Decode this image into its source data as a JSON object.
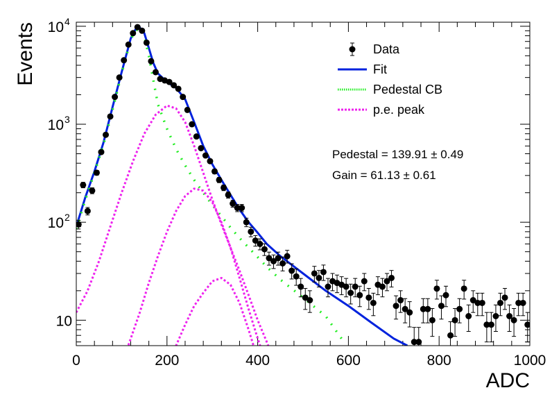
{
  "chart_data": {
    "type": "scatter",
    "title": "",
    "xlabel": "ADC",
    "ylabel": "Events",
    "xlim": [
      0,
      1000
    ],
    "ylim": [
      5.5,
      11000
    ],
    "yscale": "log",
    "grid": false,
    "x_ticks": [
      0,
      200,
      400,
      600,
      800,
      1000
    ],
    "x_tick_labels": [
      "0",
      "200",
      "400",
      "600",
      "800",
      "1000"
    ],
    "y_ticks": [
      10,
      100,
      1000,
      10000
    ],
    "y_tick_labels": [
      {
        "base": "10",
        "exp": ""
      },
      {
        "base": "10",
        "exp": "2"
      },
      {
        "base": "10",
        "exp": "3"
      },
      {
        "base": "10",
        "exp": "4"
      }
    ],
    "legend": {
      "placement": "top-right",
      "entries": [
        {
          "label": "Data",
          "style": "marker",
          "color": "#000000"
        },
        {
          "label": "Fit",
          "style": "solid",
          "color": "#0022dd"
        },
        {
          "label": "Pedestal CB",
          "style": "dotted",
          "color": "#22ee22"
        },
        {
          "label": "p.e. peak",
          "style": "dashed",
          "color": "#ee22ee"
        }
      ]
    },
    "annotations": [
      "Pedestal = 139.91 ± 0.49",
      "Gain = 61.13 ± 0.61"
    ],
    "series": [
      {
        "name": "Data",
        "kind": "points_with_errors",
        "color": "#000000",
        "points": [
          [
            5,
            95
          ],
          [
            15,
            240
          ],
          [
            25,
            130
          ],
          [
            35,
            210
          ],
          [
            45,
            320
          ],
          [
            55,
            520
          ],
          [
            65,
            780
          ],
          [
            75,
            1200
          ],
          [
            85,
            1900
          ],
          [
            95,
            3000
          ],
          [
            105,
            4500
          ],
          [
            115,
            6500
          ],
          [
            125,
            8500
          ],
          [
            135,
            9800
          ],
          [
            145,
            9000
          ],
          [
            155,
            6800
          ],
          [
            165,
            4400
          ],
          [
            175,
            3400
          ],
          [
            185,
            2900
          ],
          [
            195,
            2800
          ],
          [
            205,
            2700
          ],
          [
            215,
            2500
          ],
          [
            225,
            2300
          ],
          [
            235,
            1900
          ],
          [
            245,
            1400
          ],
          [
            255,
            1000
          ],
          [
            265,
            750
          ],
          [
            275,
            570
          ],
          [
            285,
            480
          ],
          [
            295,
            420
          ],
          [
            305,
            330
          ],
          [
            315,
            270
          ],
          [
            325,
            225
          ],
          [
            335,
            190
          ],
          [
            345,
            155
          ],
          [
            355,
            140
          ],
          [
            365,
            140
          ],
          [
            375,
            100
          ],
          [
            385,
            80
          ],
          [
            395,
            65
          ],
          [
            405,
            60
          ],
          [
            415,
            53
          ],
          [
            425,
            43
          ],
          [
            435,
            40
          ],
          [
            445,
            43
          ],
          [
            455,
            38
          ],
          [
            465,
            45
          ],
          [
            475,
            32
          ],
          [
            485,
            28
          ],
          [
            495,
            22
          ],
          [
            505,
            17
          ],
          [
            515,
            16
          ],
          [
            525,
            30
          ],
          [
            535,
            27
          ],
          [
            545,
            31
          ],
          [
            555,
            22
          ],
          [
            565,
            25
          ],
          [
            575,
            24
          ],
          [
            585,
            23
          ],
          [
            595,
            22
          ],
          [
            605,
            19
          ],
          [
            615,
            22
          ],
          [
            625,
            18
          ],
          [
            635,
            25
          ],
          [
            645,
            17
          ],
          [
            655,
            15
          ],
          [
            665,
            23
          ],
          [
            675,
            22
          ],
          [
            685,
            25
          ],
          [
            695,
            27
          ],
          [
            705,
            14
          ],
          [
            715,
            16
          ],
          [
            725,
            13
          ],
          [
            735,
            12
          ],
          [
            745,
            6
          ],
          [
            755,
            6
          ],
          [
            765,
            13
          ],
          [
            775,
            13
          ],
          [
            785,
            10
          ],
          [
            795,
            21
          ],
          [
            805,
            14
          ],
          [
            815,
            18
          ],
          [
            825,
            7
          ],
          [
            835,
            10
          ],
          [
            845,
            13
          ],
          [
            855,
            21
          ],
          [
            865,
            11
          ],
          [
            875,
            16
          ],
          [
            885,
            15
          ],
          [
            895,
            15
          ],
          [
            905,
            9
          ],
          [
            915,
            9
          ],
          [
            925,
            11
          ],
          [
            935,
            15
          ],
          [
            945,
            17
          ],
          [
            955,
            11
          ],
          [
            965,
            10
          ],
          [
            975,
            15
          ],
          [
            985,
            15
          ],
          [
            995,
            9
          ]
        ]
      },
      {
        "name": "Fit",
        "kind": "line",
        "color": "#0022dd",
        "points": [
          [
            0,
            90
          ],
          [
            20,
            180
          ],
          [
            40,
            330
          ],
          [
            60,
            650
          ],
          [
            80,
            1500
          ],
          [
            100,
            3400
          ],
          [
            120,
            7500
          ],
          [
            130,
            9200
          ],
          [
            140,
            9700
          ],
          [
            150,
            8500
          ],
          [
            160,
            6000
          ],
          [
            170,
            4200
          ],
          [
            180,
            3300
          ],
          [
            200,
            2700
          ],
          [
            220,
            2350
          ],
          [
            240,
            1800
          ],
          [
            260,
            1050
          ],
          [
            280,
            600
          ],
          [
            300,
            390
          ],
          [
            320,
            270
          ],
          [
            340,
            190
          ],
          [
            360,
            135
          ],
          [
            380,
            100
          ],
          [
            400,
            78
          ],
          [
            420,
            60
          ],
          [
            450,
            45
          ],
          [
            500,
            30
          ],
          [
            550,
            20
          ],
          [
            600,
            14
          ],
          [
            650,
            9.5
          ],
          [
            700,
            6.5
          ],
          [
            730,
            5.5
          ]
        ]
      },
      {
        "name": "Pedestal CB",
        "kind": "line",
        "color": "#22ee22",
        "points": [
          [
            0,
            85
          ],
          [
            20,
            170
          ],
          [
            40,
            320
          ],
          [
            60,
            620
          ],
          [
            80,
            1400
          ],
          [
            100,
            3300
          ],
          [
            120,
            7300
          ],
          [
            130,
            9000
          ],
          [
            140,
            9500
          ],
          [
            150,
            8000
          ],
          [
            160,
            5000
          ],
          [
            170,
            2800
          ],
          [
            180,
            1600
          ],
          [
            200,
            900
          ],
          [
            220,
            560
          ],
          [
            240,
            380
          ],
          [
            260,
            270
          ],
          [
            280,
            200
          ],
          [
            300,
            150
          ],
          [
            320,
            115
          ],
          [
            340,
            88
          ],
          [
            360,
            69
          ],
          [
            380,
            55
          ],
          [
            400,
            44
          ],
          [
            420,
            35
          ],
          [
            450,
            26
          ],
          [
            500,
            17
          ],
          [
            550,
            11
          ],
          [
            590,
            6
          ]
        ]
      },
      {
        "name": "p.e. peak 1",
        "kind": "line",
        "color": "#ee22ee",
        "points": [
          [
            0,
            12
          ],
          [
            25,
            20
          ],
          [
            50,
            40
          ],
          [
            75,
            90
          ],
          [
            100,
            200
          ],
          [
            125,
            420
          ],
          [
            150,
            800
          ],
          [
            175,
            1250
          ],
          [
            200,
            1550
          ],
          [
            220,
            1450
          ],
          [
            240,
            1050
          ],
          [
            260,
            600
          ],
          [
            280,
            320
          ],
          [
            300,
            170
          ],
          [
            320,
            95
          ],
          [
            340,
            55
          ],
          [
            360,
            32
          ],
          [
            380,
            18
          ],
          [
            400,
            10
          ],
          [
            420,
            6
          ],
          [
            440,
            3.5
          ]
        ]
      },
      {
        "name": "p.e. peak 2",
        "kind": "line",
        "color": "#ee22ee",
        "points": [
          [
            100,
            3.5
          ],
          [
            120,
            6.5
          ],
          [
            140,
            12
          ],
          [
            160,
            24
          ],
          [
            180,
            45
          ],
          [
            200,
            80
          ],
          [
            220,
            130
          ],
          [
            240,
            185
          ],
          [
            260,
            220
          ],
          [
            280,
            210
          ],
          [
            300,
            160
          ],
          [
            320,
            100
          ],
          [
            340,
            55
          ],
          [
            360,
            27
          ],
          [
            380,
            13
          ],
          [
            400,
            6.5
          ],
          [
            420,
            3.5
          ]
        ]
      },
      {
        "name": "p.e. peak 3",
        "kind": "line",
        "color": "#ee22ee",
        "points": [
          [
            200,
            3.5
          ],
          [
            220,
            5.5
          ],
          [
            240,
            9
          ],
          [
            260,
            14
          ],
          [
            280,
            19
          ],
          [
            300,
            25
          ],
          [
            320,
            27
          ],
          [
            340,
            23
          ],
          [
            360,
            15
          ],
          [
            380,
            8
          ],
          [
            400,
            4
          ]
        ]
      }
    ]
  }
}
